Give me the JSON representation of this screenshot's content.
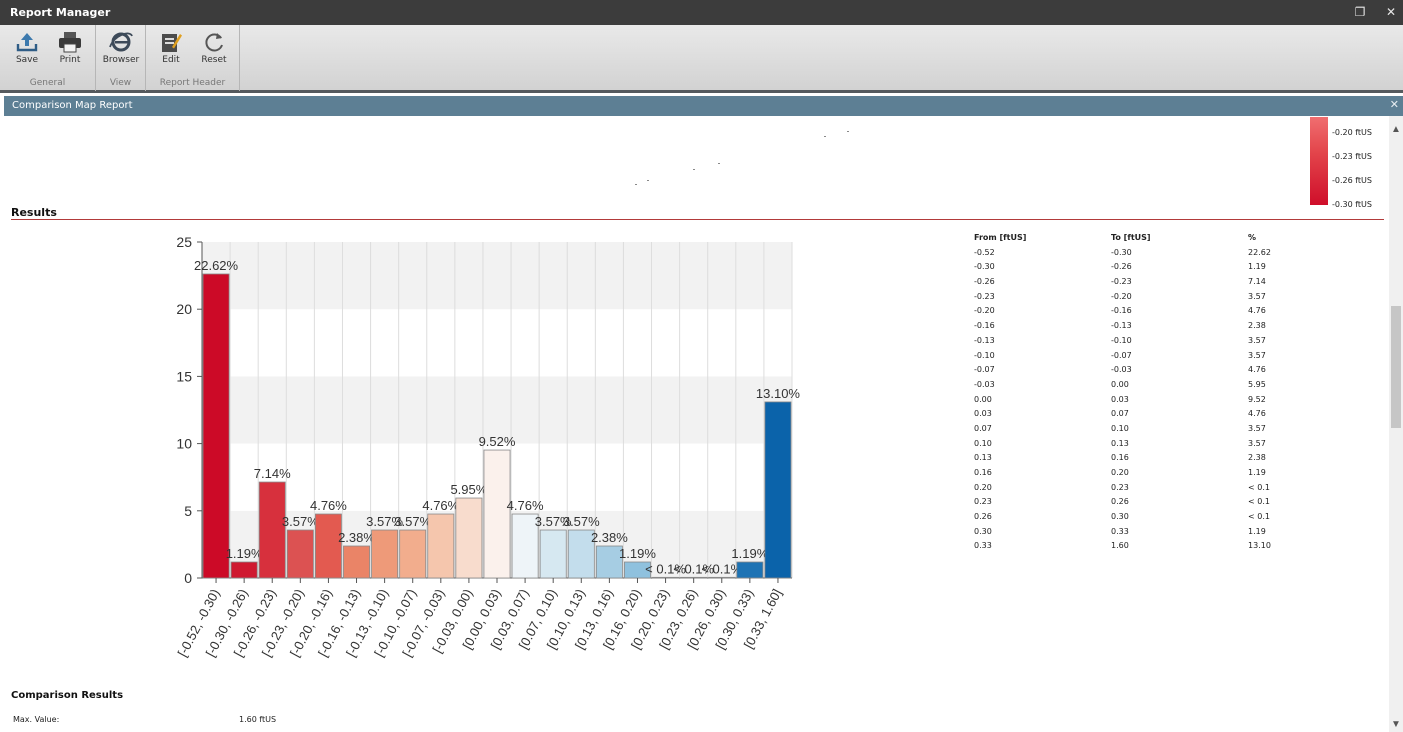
{
  "window": {
    "title": "Report Manager",
    "restore_glyph": "❐",
    "close_glyph": "✕"
  },
  "ribbon": {
    "groups": [
      {
        "label": "General",
        "buttons": [
          {
            "label": "Save",
            "icon": "save-icon"
          },
          {
            "label": "Print",
            "icon": "printer-icon"
          }
        ]
      },
      {
        "label": "View",
        "buttons": [
          {
            "label": "Browser",
            "icon": "browser-icon"
          }
        ]
      },
      {
        "label": "Report Header",
        "buttons": [
          {
            "label": "Edit",
            "icon": "edit-icon"
          },
          {
            "label": "Reset",
            "icon": "reset-icon"
          }
        ]
      }
    ]
  },
  "panel": {
    "title": "Comparison Map Report",
    "close_glyph": "✕"
  },
  "legend": {
    "labels": [
      "-0.20 ftUS",
      "-0.23 ftUS",
      "-0.26 ftUS",
      "-0.30 ftUS"
    ]
  },
  "results": {
    "title": "Results",
    "table": {
      "headers": [
        "From [ftUS]",
        "To [ftUS]",
        "%"
      ],
      "rows": [
        [
          "-0.52",
          "-0.30",
          "22.62"
        ],
        [
          "-0.30",
          "-0.26",
          "1.19"
        ],
        [
          "-0.26",
          "-0.23",
          "7.14"
        ],
        [
          "-0.23",
          "-0.20",
          "3.57"
        ],
        [
          "-0.20",
          "-0.16",
          "4.76"
        ],
        [
          "-0.16",
          "-0.13",
          "2.38"
        ],
        [
          "-0.13",
          "-0.10",
          "3.57"
        ],
        [
          "-0.10",
          "-0.07",
          "3.57"
        ],
        [
          "-0.07",
          "-0.03",
          "4.76"
        ],
        [
          "-0.03",
          "0.00",
          "5.95"
        ],
        [
          "0.00",
          "0.03",
          "9.52"
        ],
        [
          "0.03",
          "0.07",
          "4.76"
        ],
        [
          "0.07",
          "0.10",
          "3.57"
        ],
        [
          "0.10",
          "0.13",
          "3.57"
        ],
        [
          "0.13",
          "0.16",
          "2.38"
        ],
        [
          "0.16",
          "0.20",
          "1.19"
        ],
        [
          "0.20",
          "0.23",
          "< 0.1"
        ],
        [
          "0.23",
          "0.26",
          "< 0.1"
        ],
        [
          "0.26",
          "0.30",
          "< 0.1"
        ],
        [
          "0.30",
          "0.33",
          "1.19"
        ],
        [
          "0.33",
          "1.60",
          "13.10"
        ]
      ]
    }
  },
  "chart_data": {
    "type": "bar",
    "categories": [
      "[-0.52, -0.30)",
      "[-0.30, -0.26)",
      "[-0.26, -0.23)",
      "[-0.23, -0.20)",
      "[-0.20, -0.16)",
      "[-0.16, -0.13)",
      "[-0.13, -0.10)",
      "[-0.10, -0.07)",
      "[-0.07, -0.03)",
      "[-0.03, 0.00)",
      "[0.00, 0.03)",
      "[0.03, 0.07)",
      "[0.07, 0.10)",
      "[0.10, 0.13)",
      "[0.13, 0.16)",
      "[0.16, 0.20)",
      "[0.20, 0.23)",
      "[0.23, 0.26)",
      "[0.26, 0.30)",
      "[0.30, 0.33)",
      "[0.33, 1.60]"
    ],
    "values": [
      22.62,
      1.19,
      7.14,
      3.57,
      4.76,
      2.38,
      3.57,
      3.57,
      4.76,
      5.95,
      9.52,
      4.76,
      3.57,
      3.57,
      2.38,
      1.19,
      0.05,
      0.05,
      0.05,
      1.19,
      13.1
    ],
    "data_labels": [
      "22.62%",
      "1.19%",
      "7.14%",
      "3.57%",
      "4.76%",
      "2.38%",
      "3.57%",
      "3.57%",
      "4.76%",
      "5.95%",
      "9.52%",
      "4.76%",
      "3.57%",
      "3.57%",
      "2.38%",
      "1.19%",
      "< 0.1%",
      "< 0.1%",
      "< 0.1%",
      "1.19%",
      "13.10%"
    ],
    "colors": [
      "#cc0a27",
      "#cf1930",
      "#d7303d",
      "#dc5252",
      "#e35a50",
      "#ea8467",
      "#ee9a79",
      "#f2ad8d",
      "#f5c6ad",
      "#f8dccd",
      "#fbf1ec",
      "#eef4f8",
      "#d6e8f1",
      "#c3ddec",
      "#a6cde3",
      "#8fc1de",
      "#7fb5d8",
      "#5fa0cc",
      "#3c88c0",
      "#1e73b4",
      "#0b63aa"
    ],
    "yticks": [
      "0",
      "5",
      "10",
      "15",
      "20",
      "25"
    ],
    "ylim": [
      0,
      25
    ],
    "grid": true,
    "title": "",
    "xlabel": "",
    "ylabel": ""
  },
  "comparison": {
    "title": "Comparison Results",
    "max_label": "Max. Value:",
    "max_value": "1.60 ftUS"
  }
}
